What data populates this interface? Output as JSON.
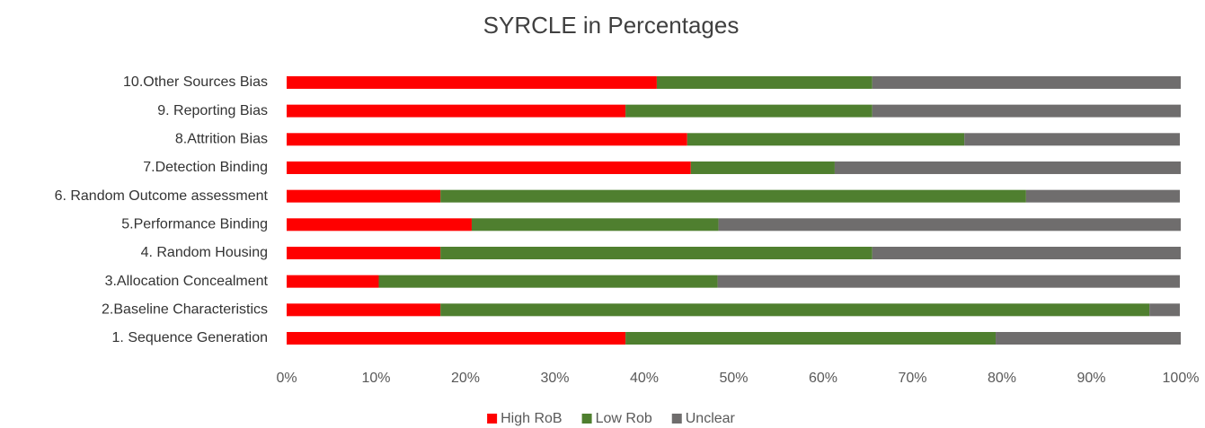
{
  "chart_data": {
    "type": "stacked_bar_horizontal",
    "title": "SYRCLE in Percentages",
    "categories": [
      "1. Sequence Generation",
      "2.Baseline Characteristics",
      "3.Allocation Concealment",
      "4. Random Housing",
      "5.Performance Binding",
      "6. Random Outcome assessment",
      "7.Detection Binding",
      "8.Attrition Bias",
      "9. Reporting Bias",
      "10.Other Sources Bias"
    ],
    "series": [
      {
        "name": "High RoB",
        "color": "#ff0000",
        "values": [
          37.9,
          17.2,
          10.3,
          17.2,
          20.7,
          17.2,
          45.2,
          44.8,
          37.9,
          41.4
        ]
      },
      {
        "name": "Low Rob",
        "color": "#4f7f2f",
        "values": [
          41.4,
          79.3,
          37.9,
          48.3,
          27.6,
          65.5,
          16.1,
          31.0,
          27.6,
          24.1
        ]
      },
      {
        "name": "Unclear",
        "color": "#6f6d6d",
        "values": [
          20.7,
          3.4,
          51.7,
          34.5,
          51.7,
          17.2,
          38.7,
          24.1,
          34.5,
          34.5
        ]
      }
    ],
    "xlim": [
      0,
      100
    ],
    "xticks": [
      {
        "value": 0,
        "label": "0%"
      },
      {
        "value": 10,
        "label": "10%"
      },
      {
        "value": 20,
        "label": "20%"
      },
      {
        "value": 30,
        "label": "30%"
      },
      {
        "value": 40,
        "label": "40%"
      },
      {
        "value": 50,
        "label": "50%"
      },
      {
        "value": 60,
        "label": "60%"
      },
      {
        "value": 70,
        "label": "70%"
      },
      {
        "value": 80,
        "label": "80%"
      },
      {
        "value": 90,
        "label": "90%"
      },
      {
        "value": 100,
        "label": "100%"
      }
    ],
    "legend": "bottom"
  }
}
